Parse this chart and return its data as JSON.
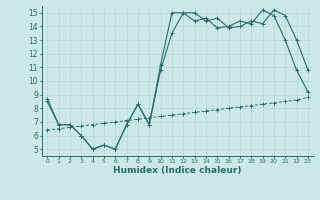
{
  "xlabel": "Humidex (Indice chaleur)",
  "xlim": [
    -0.5,
    23.5
  ],
  "ylim": [
    4.5,
    15.5
  ],
  "xticks": [
    0,
    1,
    2,
    3,
    4,
    5,
    6,
    7,
    8,
    9,
    10,
    11,
    12,
    13,
    14,
    15,
    16,
    17,
    18,
    19,
    20,
    21,
    22,
    23
  ],
  "yticks": [
    5,
    6,
    7,
    8,
    9,
    10,
    11,
    12,
    13,
    14,
    15
  ],
  "bg_color": "#cce8e8",
  "line_color": "#2d6b6b",
  "line1_x": [
    0,
    1,
    2,
    3,
    4,
    5,
    6,
    7,
    8,
    9,
    10,
    11,
    12,
    13,
    14,
    15,
    16,
    17,
    18,
    19,
    20,
    21,
    22,
    23
  ],
  "line1_y": [
    8.7,
    6.8,
    6.8,
    6.0,
    5.0,
    5.3,
    5.0,
    6.8,
    8.3,
    6.8,
    11.2,
    15.0,
    15.0,
    14.4,
    14.6,
    13.9,
    14.0,
    14.4,
    14.2,
    15.2,
    14.8,
    13.0,
    10.8,
    9.2
  ],
  "line2_x": [
    0,
    1,
    2,
    3,
    4,
    5,
    6,
    7,
    8,
    9,
    10,
    11,
    12,
    13,
    14,
    15,
    16,
    17,
    18,
    19,
    20,
    21,
    22,
    23
  ],
  "line2_y": [
    8.5,
    6.8,
    6.8,
    6.0,
    5.0,
    5.3,
    5.0,
    6.8,
    8.3,
    6.8,
    10.8,
    13.5,
    15.0,
    15.0,
    14.4,
    14.6,
    13.9,
    14.0,
    14.4,
    14.2,
    15.2,
    14.8,
    13.0,
    10.8
  ],
  "line3_x": [
    0,
    1,
    2,
    3,
    4,
    5,
    6,
    7,
    8,
    9,
    10,
    11,
    12,
    13,
    14,
    15,
    16,
    17,
    18,
    19,
    20,
    21,
    22,
    23
  ],
  "line3_y": [
    6.4,
    6.5,
    6.6,
    6.7,
    6.8,
    6.9,
    7.0,
    7.1,
    7.2,
    7.3,
    7.4,
    7.5,
    7.6,
    7.7,
    7.8,
    7.9,
    8.0,
    8.1,
    8.2,
    8.3,
    8.4,
    8.5,
    8.6,
    8.8
  ]
}
